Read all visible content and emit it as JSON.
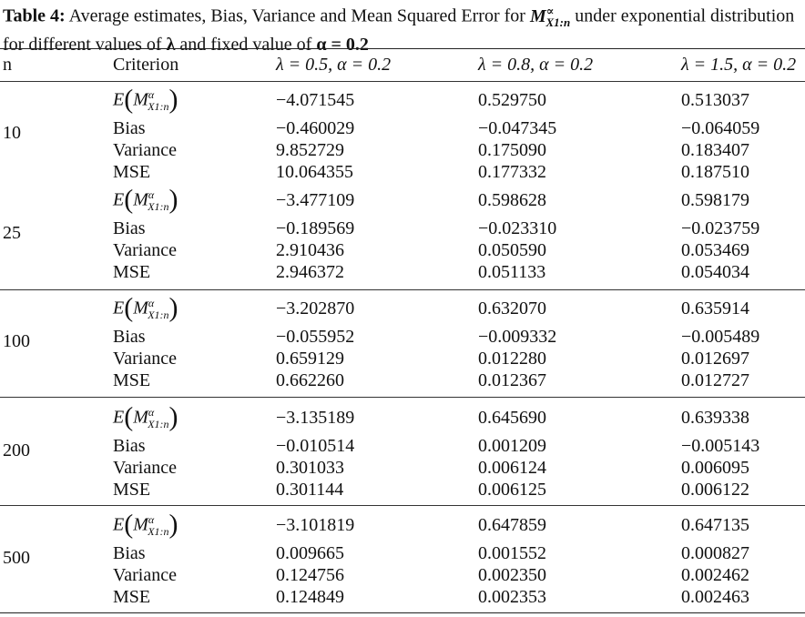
{
  "caption": {
    "label": "Table 4:",
    "text_1": "Average estimates, Bias, Variance and Mean Squared Error for",
    "m_symbol": "M",
    "m_sup": "∝",
    "m_sub": "X1:n",
    "text_2": "under exponential distribution for different values of",
    "lambda_symbol": "λ",
    "text_3": "and fixed value of",
    "alpha_eq": "α = 0.2"
  },
  "headers": {
    "n": "n",
    "criterion": "Criterion",
    "col1": "λ = 0.5, α = 0.2",
    "col2": "λ = 0.8, α = 0.2",
    "col3": "λ = 1.5, α = 0.2"
  },
  "estimate_label": {
    "e": "E",
    "m": "M",
    "sup": "α",
    "sub": "X1:n"
  },
  "criteria": [
    "Bias",
    "Variance",
    "MSE"
  ],
  "groups": [
    {
      "n": "10",
      "rows": [
        [
          "−4.071545",
          "0.529750",
          "0.513037"
        ],
        [
          "−0.460029",
          "−0.047345",
          "−0.064059"
        ],
        [
          "9.852729",
          "0.175090",
          "0.183407"
        ],
        [
          "10.064355",
          "0.177332",
          "0.187510"
        ]
      ]
    },
    {
      "n": "25",
      "rows": [
        [
          "−3.477109",
          "0.598628",
          "0.598179"
        ],
        [
          "−0.189569",
          "−0.023310",
          "−0.023759"
        ],
        [
          "2.910436",
          "0.050590",
          "0.053469"
        ],
        [
          "2.946372",
          "0.051133",
          "0.054034"
        ]
      ]
    },
    {
      "n": "100",
      "rows": [
        [
          "−3.202870",
          "0.632070",
          "0.635914"
        ],
        [
          "−0.055952",
          "−0.009332",
          "−0.005489"
        ],
        [
          "0.659129",
          "0.012280",
          "0.012697"
        ],
        [
          "0.662260",
          "0.012367",
          "0.012727"
        ]
      ]
    },
    {
      "n": "200",
      "rows": [
        [
          "−3.135189",
          "0.645690",
          "0.639338"
        ],
        [
          "−0.010514",
          "0.001209",
          "−0.005143"
        ],
        [
          "0.301033",
          "0.006124",
          "0.006095"
        ],
        [
          "0.301144",
          "0.006125",
          "0.006122"
        ]
      ]
    },
    {
      "n": "500",
      "rows": [
        [
          "−3.101819",
          "0.647859",
          "0.647135"
        ],
        [
          "0.009665",
          "0.001552",
          "0.000827"
        ],
        [
          "0.124756",
          "0.002350",
          "0.002462"
        ],
        [
          "0.124849",
          "0.002353",
          "0.002463"
        ]
      ]
    }
  ]
}
